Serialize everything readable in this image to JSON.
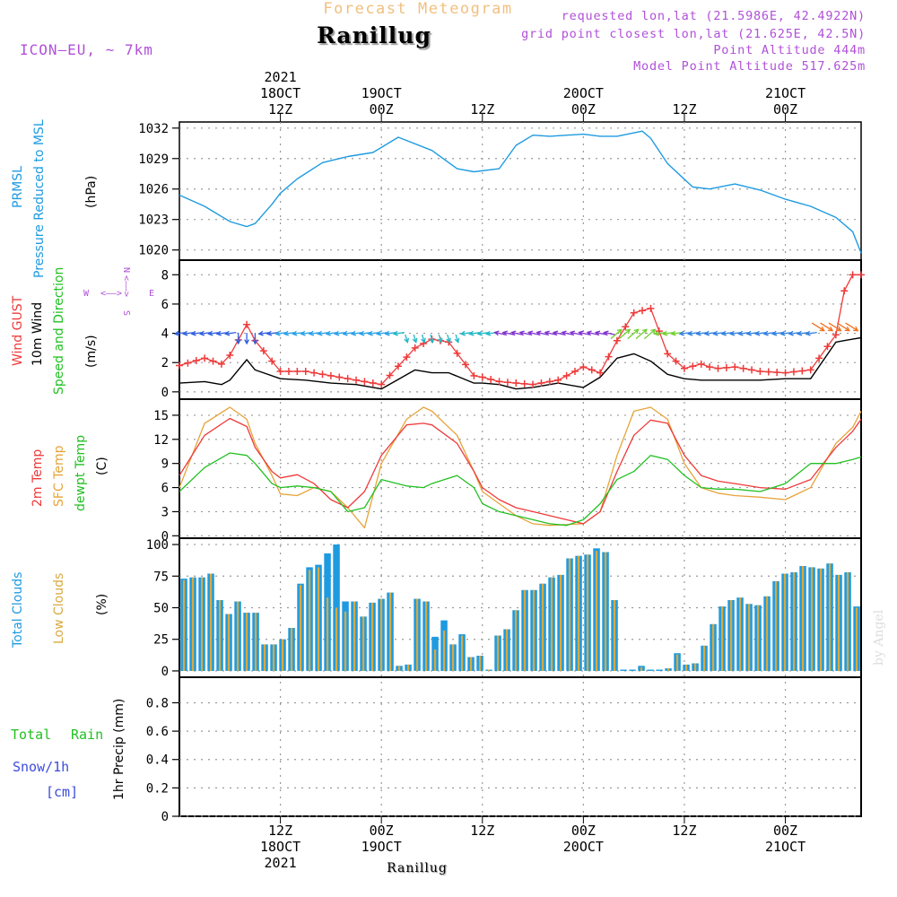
{
  "header": {
    "supertitle": "Forecast Meteogram",
    "station": "Ranillug",
    "model": "ICON—EU, ~ 7km",
    "requested": "requested lon,lat (21.5986E, 42.4922N)",
    "gridpoint": "grid point closest lon,lat (21.625E, 42.5N)",
    "altitude": "Point Altitude 444m",
    "model_altitude": "Model Point Altitude 517.625m",
    "footer_name": "Ranillug",
    "credit": "by Angel"
  },
  "time_axis": {
    "top": [
      {
        "h": 12,
        "lines": [
          "2021",
          "18OCT",
          "12Z"
        ]
      },
      {
        "h": 24,
        "lines": [
          "19OCT",
          "00Z"
        ]
      },
      {
        "h": 36,
        "lines": [
          "12Z"
        ]
      },
      {
        "h": 48,
        "lines": [
          "20OCT",
          "00Z"
        ]
      },
      {
        "h": 60,
        "lines": [
          "12Z"
        ]
      },
      {
        "h": 72,
        "lines": [
          "21OCT",
          "00Z"
        ]
      }
    ],
    "bottom": [
      {
        "h": 12,
        "lines": [
          "12Z",
          "18OCT",
          "2021"
        ]
      },
      {
        "h": 24,
        "lines": [
          "00Z",
          "19OCT"
        ]
      },
      {
        "h": 36,
        "lines": [
          "12Z"
        ]
      },
      {
        "h": 48,
        "lines": [
          "00Z",
          "20OCT"
        ]
      },
      {
        "h": 60,
        "lines": [
          "12Z"
        ]
      },
      {
        "h": 72,
        "lines": [
          "00Z",
          "21OCT"
        ]
      }
    ]
  },
  "panel_labels": {
    "pressure": {
      "lines": [
        "PRMSL",
        "Pressure Reduced to MSL"
      ],
      "unit": "(hPa)",
      "color": "#1e9be0"
    },
    "wind": {
      "gust": "Wind GUST",
      "wind10": "10m Wind",
      "dir": "Speed and Direction",
      "unit": "(m/s)",
      "compass": {
        "w": "W",
        "e": "E",
        "n": "N",
        "s": "S",
        "arrow_we": "<——>",
        "arrow_ns": "<——>"
      }
    },
    "temp": {
      "t2m": "2m Temp",
      "sfc": "SFC Temp",
      "dew": "dewpt Temp",
      "unit": "(C)"
    },
    "clouds": {
      "total": "Total Clouds",
      "low": "Low Clouds",
      "unit": "(%)"
    },
    "precip": {
      "rain_word1": "Total",
      "rain_word2": "Rain",
      "snow": "Snow/1h",
      "snow_unit": "[cm]",
      "axis": "1hr Precip (mm)"
    }
  },
  "colors": {
    "pressure": "#1e9be0",
    "gust": "#ee3a3a",
    "wind": "#000000",
    "t2m": "#ee3a3a",
    "sfc": "#e6a43a",
    "dew": "#22c022",
    "total_clouds": "#1e9be0",
    "low_clouds": "#d9a93f",
    "rain": "#22c022",
    "snow": "#3c4cdc",
    "labels_purple": "#b050d8",
    "title_orange": "#f0c080"
  },
  "chart_data": [
    {
      "type": "line",
      "name": "prmsl",
      "ylabel": "(hPa)",
      "yticks": [
        1020,
        1023,
        1026,
        1029,
        1032
      ],
      "ylim": [
        1019,
        1032.6
      ],
      "x_hours": [
        0,
        3,
        6,
        8,
        9,
        11,
        12,
        14,
        17,
        20,
        23,
        26,
        30,
        33,
        35,
        38,
        40,
        42,
        44,
        48,
        50,
        52,
        55,
        56,
        58,
        61,
        63,
        66,
        69,
        72,
        75,
        78,
        80,
        81
      ],
      "series": [
        {
          "values": [
            1025.4,
            1024.3,
            1022.8,
            1022.3,
            1022.6,
            1024.5,
            1025.6,
            1027.0,
            1028.6,
            1029.2,
            1029.6,
            1031.1,
            1029.8,
            1028.0,
            1027.7,
            1028.0,
            1030.3,
            1031.3,
            1031.2,
            1031.4,
            1031.2,
            1031.2,
            1031.7,
            1031.0,
            1028.5,
            1026.2,
            1026.0,
            1026.5,
            1025.9,
            1025.0,
            1024.3,
            1023.2,
            1021.8,
            1019.7
          ]
        }
      ]
    },
    {
      "type": "line",
      "name": "wind",
      "ylabel": "(m/s)",
      "yticks": [
        0,
        2,
        4,
        6,
        8
      ],
      "ylim": [
        -0.5,
        9
      ],
      "x_hours": [
        0,
        3,
        5,
        6,
        8,
        9,
        12,
        15,
        18,
        21,
        24,
        28,
        30,
        32,
        35,
        36,
        38,
        40,
        42,
        45,
        48,
        50,
        52,
        54,
        56,
        58,
        60,
        62,
        63,
        64,
        66,
        69,
        72,
        75,
        78,
        79,
        80,
        81
      ],
      "series": [
        {
          "name": "Wind GUST",
          "values": [
            1.8,
            2.3,
            1.9,
            2.5,
            4.6,
            3.5,
            1.4,
            1.4,
            1.1,
            0.8,
            0.5,
            3.0,
            3.6,
            3.4,
            1.1,
            1.0,
            0.7,
            0.6,
            0.5,
            0.8,
            1.7,
            1.3,
            3.5,
            5.4,
            5.7,
            2.6,
            1.6,
            1.9,
            1.7,
            1.6,
            1.7,
            1.4,
            1.3,
            1.5,
            3.9,
            6.9,
            8.0,
            8.0
          ]
        },
        {
          "name": "10m Wind",
          "values": [
            0.6,
            0.7,
            0.5,
            0.8,
            2.2,
            1.5,
            0.9,
            0.8,
            0.6,
            0.5,
            0.2,
            1.5,
            1.3,
            1.3,
            0.6,
            0.6,
            0.5,
            0.2,
            0.3,
            0.6,
            0.3,
            1.0,
            2.3,
            2.6,
            2.1,
            1.2,
            0.9,
            0.8,
            0.8,
            0.8,
            0.8,
            0.8,
            0.9,
            0.9,
            3.4,
            3.5,
            3.6,
            3.7
          ]
        }
      ],
      "arrow_bands": [
        {
          "from": 0,
          "to": 12,
          "color": "#3060e0"
        },
        {
          "from": 12,
          "to": 26,
          "color": "#28a0e8"
        },
        {
          "from": 26,
          "to": 38,
          "color": "#20b8c8"
        },
        {
          "from": 38,
          "to": 52,
          "color": "#8030d0"
        },
        {
          "from": 52,
          "to": 60,
          "color": "#70d030"
        },
        {
          "from": 60,
          "to": 76,
          "color": "#3080e0"
        },
        {
          "from": 76,
          "to": 81,
          "color": "#f07020"
        }
      ]
    },
    {
      "type": "line",
      "name": "temperature",
      "ylabel": "(C)",
      "yticks": [
        0,
        3,
        6,
        9,
        12,
        15
      ],
      "ylim": [
        -0.3,
        17
      ],
      "x_hours": [
        0,
        3,
        6,
        8,
        9,
        11,
        12,
        14,
        16,
        18,
        20,
        22,
        24,
        27,
        29,
        30,
        33,
        35,
        36,
        38,
        40,
        42,
        44,
        46,
        48,
        50,
        52,
        54,
        56,
        58,
        60,
        62,
        64,
        66,
        69,
        72,
        75,
        78,
        80,
        81
      ],
      "series": [
        {
          "name": "2m Temp",
          "values": [
            7.5,
            12.5,
            14.6,
            13.6,
            11.0,
            8.0,
            7.2,
            7.6,
            6.5,
            4.5,
            3.5,
            5.5,
            10.0,
            13.8,
            14.0,
            13.8,
            11.5,
            8.0,
            6.0,
            4.5,
            3.5,
            3.0,
            2.5,
            2.0,
            1.5,
            3.0,
            8.0,
            12.5,
            14.4,
            14.0,
            10.0,
            7.5,
            6.8,
            6.5,
            6.0,
            5.8,
            7.0,
            11.0,
            13.0,
            14.5
          ]
        },
        {
          "name": "SFC Temp",
          "values": [
            6.0,
            14.0,
            16.0,
            14.5,
            11.5,
            7.5,
            5.2,
            5.0,
            6.0,
            5.5,
            3.5,
            1.0,
            9.0,
            14.5,
            16.0,
            15.5,
            12.5,
            8.0,
            5.5,
            4.0,
            2.5,
            1.5,
            1.3,
            1.4,
            1.5,
            3.0,
            10.0,
            15.5,
            16.0,
            14.5,
            9.0,
            6.0,
            5.3,
            5.0,
            4.8,
            4.5,
            6.0,
            11.5,
            13.5,
            15.5
          ]
        },
        {
          "name": "dewpt Temp",
          "values": [
            5.5,
            8.5,
            10.3,
            10.0,
            9.0,
            6.5,
            6.0,
            6.2,
            6.0,
            5.5,
            3.0,
            3.5,
            7.0,
            6.2,
            6.0,
            6.5,
            7.5,
            6.0,
            4.0,
            3.0,
            2.5,
            2.0,
            1.5,
            1.3,
            2.0,
            4.0,
            7.0,
            8.0,
            10.0,
            9.5,
            7.5,
            6.0,
            5.8,
            5.8,
            5.5,
            6.5,
            9.0,
            9.0,
            9.5,
            9.8
          ]
        }
      ]
    },
    {
      "type": "bar",
      "name": "clouds",
      "ylabel": "(%)",
      "yticks": [
        0,
        25,
        50,
        75,
        100
      ],
      "ylim": [
        -5,
        105
      ],
      "total": [
        73,
        74,
        74,
        77,
        56,
        45,
        55,
        46,
        46,
        21,
        21,
        25,
        34,
        69,
        82,
        84,
        93,
        100,
        55,
        55,
        43,
        54,
        57,
        62,
        4,
        5,
        57,
        55,
        27,
        40,
        21,
        29,
        11,
        12,
        1,
        28,
        33,
        48,
        64,
        64,
        69,
        74,
        76,
        89,
        91,
        92,
        97,
        94,
        56,
        1,
        1,
        4,
        1,
        1,
        2,
        14,
        5,
        6,
        20,
        37,
        51,
        56,
        58,
        53,
        52,
        59,
        71,
        77,
        78,
        83,
        82,
        81,
        85,
        76,
        78,
        51
      ],
      "low": [
        72,
        74,
        74,
        77,
        56,
        45,
        55,
        46,
        46,
        21,
        21,
        25,
        34,
        68,
        80,
        82,
        58,
        50,
        47,
        55,
        43,
        54,
        57,
        62,
        4,
        5,
        57,
        55,
        17,
        32,
        21,
        28,
        11,
        12,
        1,
        28,
        33,
        48,
        64,
        64,
        69,
        74,
        76,
        89,
        91,
        92,
        95,
        94,
        56,
        0,
        0,
        3,
        0,
        0,
        2,
        13,
        5,
        6,
        20,
        37,
        51,
        56,
        58,
        53,
        52,
        59,
        71,
        77,
        78,
        83,
        82,
        81,
        85,
        76,
        78,
        50
      ]
    },
    {
      "type": "bar",
      "name": "precip",
      "ylabel": "1hr Precip (mm)",
      "yticks": [
        0,
        0.2,
        0.4,
        0.6,
        0.8
      ],
      "ylim": [
        0,
        0.98
      ],
      "values": []
    }
  ]
}
